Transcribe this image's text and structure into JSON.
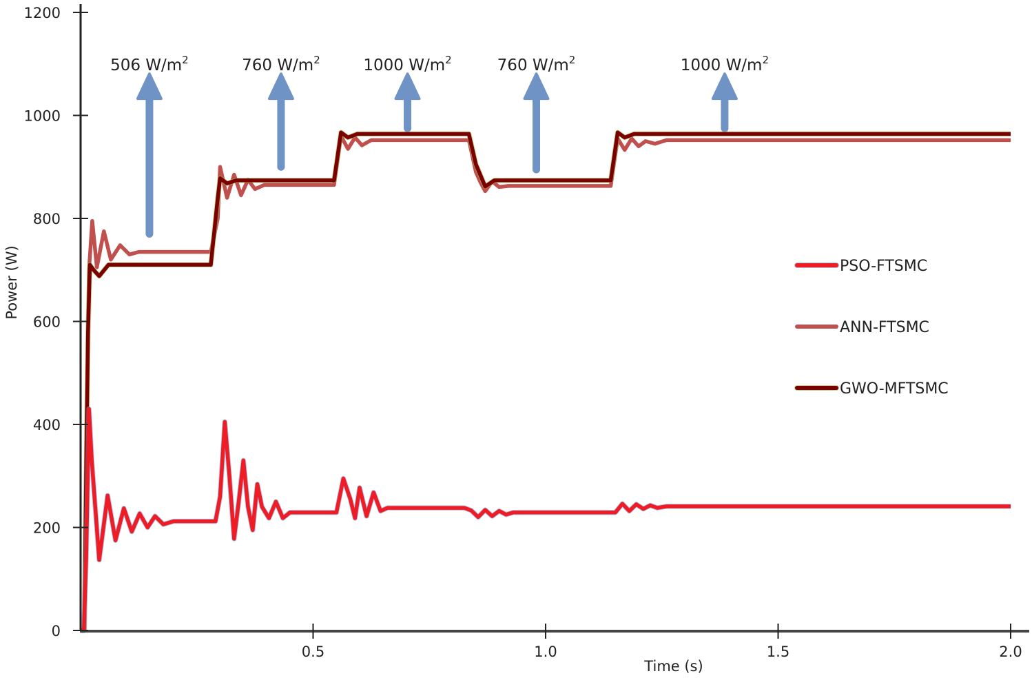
{
  "chart_data": {
    "type": "line",
    "title": "",
    "xlabel": "Time (s)",
    "ylabel": "Power (W)",
    "xlim": [
      0,
      2.0
    ],
    "ylim": [
      0,
      1200
    ],
    "xticks": [
      0.5,
      1.0,
      1.5,
      2.0
    ],
    "xtick_labels": [
      "0.5",
      "1.0",
      "1.5",
      "2.0"
    ],
    "yticks": [
      0,
      200,
      400,
      600,
      800,
      1000,
      1200
    ],
    "ytick_labels": [
      "0",
      "200",
      "400",
      "600",
      "800",
      "1000",
      "1200"
    ],
    "grid": false,
    "legend_position": "right-center",
    "series": [
      {
        "name": "PSO-FTSMC",
        "color": "#ee1c25",
        "outline": "#6fa0d8",
        "points": [
          [
            0.0,
            0
          ],
          [
            0.007,
            0
          ],
          [
            0.012,
            140
          ],
          [
            0.018,
            430
          ],
          [
            0.024,
            330
          ],
          [
            0.04,
            137
          ],
          [
            0.058,
            262
          ],
          [
            0.075,
            175
          ],
          [
            0.093,
            237
          ],
          [
            0.11,
            192
          ],
          [
            0.127,
            227
          ],
          [
            0.144,
            200
          ],
          [
            0.16,
            222
          ],
          [
            0.178,
            206
          ],
          [
            0.2,
            212
          ],
          [
            0.29,
            212
          ],
          [
            0.3,
            260
          ],
          [
            0.31,
            405
          ],
          [
            0.32,
            300
          ],
          [
            0.33,
            178
          ],
          [
            0.34,
            250
          ],
          [
            0.35,
            330
          ],
          [
            0.36,
            240
          ],
          [
            0.37,
            195
          ],
          [
            0.38,
            284
          ],
          [
            0.39,
            240
          ],
          [
            0.405,
            218
          ],
          [
            0.42,
            250
          ],
          [
            0.435,
            218
          ],
          [
            0.45,
            229
          ],
          [
            0.55,
            229
          ],
          [
            0.565,
            295
          ],
          [
            0.58,
            255
          ],
          [
            0.59,
            218
          ],
          [
            0.6,
            277
          ],
          [
            0.615,
            222
          ],
          [
            0.63,
            268
          ],
          [
            0.645,
            232
          ],
          [
            0.66,
            238
          ],
          [
            0.825,
            238
          ],
          [
            0.84,
            233
          ],
          [
            0.855,
            220
          ],
          [
            0.87,
            234
          ],
          [
            0.885,
            222
          ],
          [
            0.9,
            232
          ],
          [
            0.915,
            225
          ],
          [
            0.93,
            229
          ],
          [
            1.15,
            229
          ],
          [
            1.165,
            246
          ],
          [
            1.18,
            232
          ],
          [
            1.195,
            245
          ],
          [
            1.21,
            236
          ],
          [
            1.225,
            243
          ],
          [
            1.24,
            238
          ],
          [
            1.26,
            241
          ],
          [
            2.0,
            241
          ]
        ]
      },
      {
        "name": "ANN-FTSMC",
        "color": "#c0504d",
        "points": [
          [
            0.0,
            0
          ],
          [
            0.008,
            0
          ],
          [
            0.012,
            350
          ],
          [
            0.018,
            700
          ],
          [
            0.025,
            795
          ],
          [
            0.035,
            705
          ],
          [
            0.05,
            775
          ],
          [
            0.065,
            720
          ],
          [
            0.085,
            748
          ],
          [
            0.105,
            730
          ],
          [
            0.125,
            735
          ],
          [
            0.28,
            735
          ],
          [
            0.295,
            800
          ],
          [
            0.3,
            900
          ],
          [
            0.315,
            840
          ],
          [
            0.33,
            885
          ],
          [
            0.345,
            845
          ],
          [
            0.36,
            875
          ],
          [
            0.375,
            857
          ],
          [
            0.395,
            865
          ],
          [
            0.545,
            865
          ],
          [
            0.56,
            960
          ],
          [
            0.575,
            935
          ],
          [
            0.59,
            957
          ],
          [
            0.605,
            942
          ],
          [
            0.625,
            952
          ],
          [
            0.835,
            952
          ],
          [
            0.85,
            890
          ],
          [
            0.86,
            870
          ],
          [
            0.87,
            853
          ],
          [
            0.885,
            872
          ],
          [
            0.9,
            861
          ],
          [
            0.92,
            863
          ],
          [
            1.14,
            863
          ],
          [
            1.155,
            955
          ],
          [
            1.17,
            933
          ],
          [
            1.185,
            955
          ],
          [
            1.2,
            940
          ],
          [
            1.215,
            950
          ],
          [
            1.235,
            945
          ],
          [
            1.26,
            952
          ],
          [
            2.0,
            952
          ]
        ]
      },
      {
        "name": "GWO-MFTSMC",
        "color": "#7b0000",
        "outline": "#9bbb59",
        "points": [
          [
            0.0,
            0
          ],
          [
            0.008,
            0
          ],
          [
            0.012,
            300
          ],
          [
            0.016,
            580
          ],
          [
            0.02,
            710
          ],
          [
            0.028,
            700
          ],
          [
            0.04,
            688
          ],
          [
            0.06,
            710
          ],
          [
            0.28,
            710
          ],
          [
            0.295,
            840
          ],
          [
            0.3,
            878
          ],
          [
            0.315,
            868
          ],
          [
            0.335,
            874
          ],
          [
            0.545,
            874
          ],
          [
            0.56,
            967
          ],
          [
            0.575,
            957
          ],
          [
            0.595,
            964
          ],
          [
            0.835,
            964
          ],
          [
            0.85,
            905
          ],
          [
            0.87,
            862
          ],
          [
            0.89,
            874
          ],
          [
            1.14,
            874
          ],
          [
            1.155,
            967
          ],
          [
            1.17,
            957
          ],
          [
            1.19,
            964
          ],
          [
            2.0,
            964
          ]
        ]
      }
    ],
    "annotations": [
      {
        "text": "506 W/m",
        "sup": "2",
        "arrow_x": 0.148,
        "arrow_from": 770,
        "arrow_to": 1070
      },
      {
        "text": "760 W/m",
        "sup": "2",
        "arrow_x": 0.431,
        "arrow_from": 900,
        "arrow_to": 1070
      },
      {
        "text": "1000 W/m",
        "sup": "2",
        "arrow_x": 0.703,
        "arrow_from": 975,
        "arrow_to": 1070
      },
      {
        "text": "760 W/m",
        "sup": "2",
        "arrow_x": 0.98,
        "arrow_from": 895,
        "arrow_to": 1070
      },
      {
        "text": "1000 W/m",
        "sup": "2",
        "arrow_x": 1.385,
        "arrow_from": 975,
        "arrow_to": 1070
      }
    ],
    "annotation_color": "#6f93c4"
  }
}
